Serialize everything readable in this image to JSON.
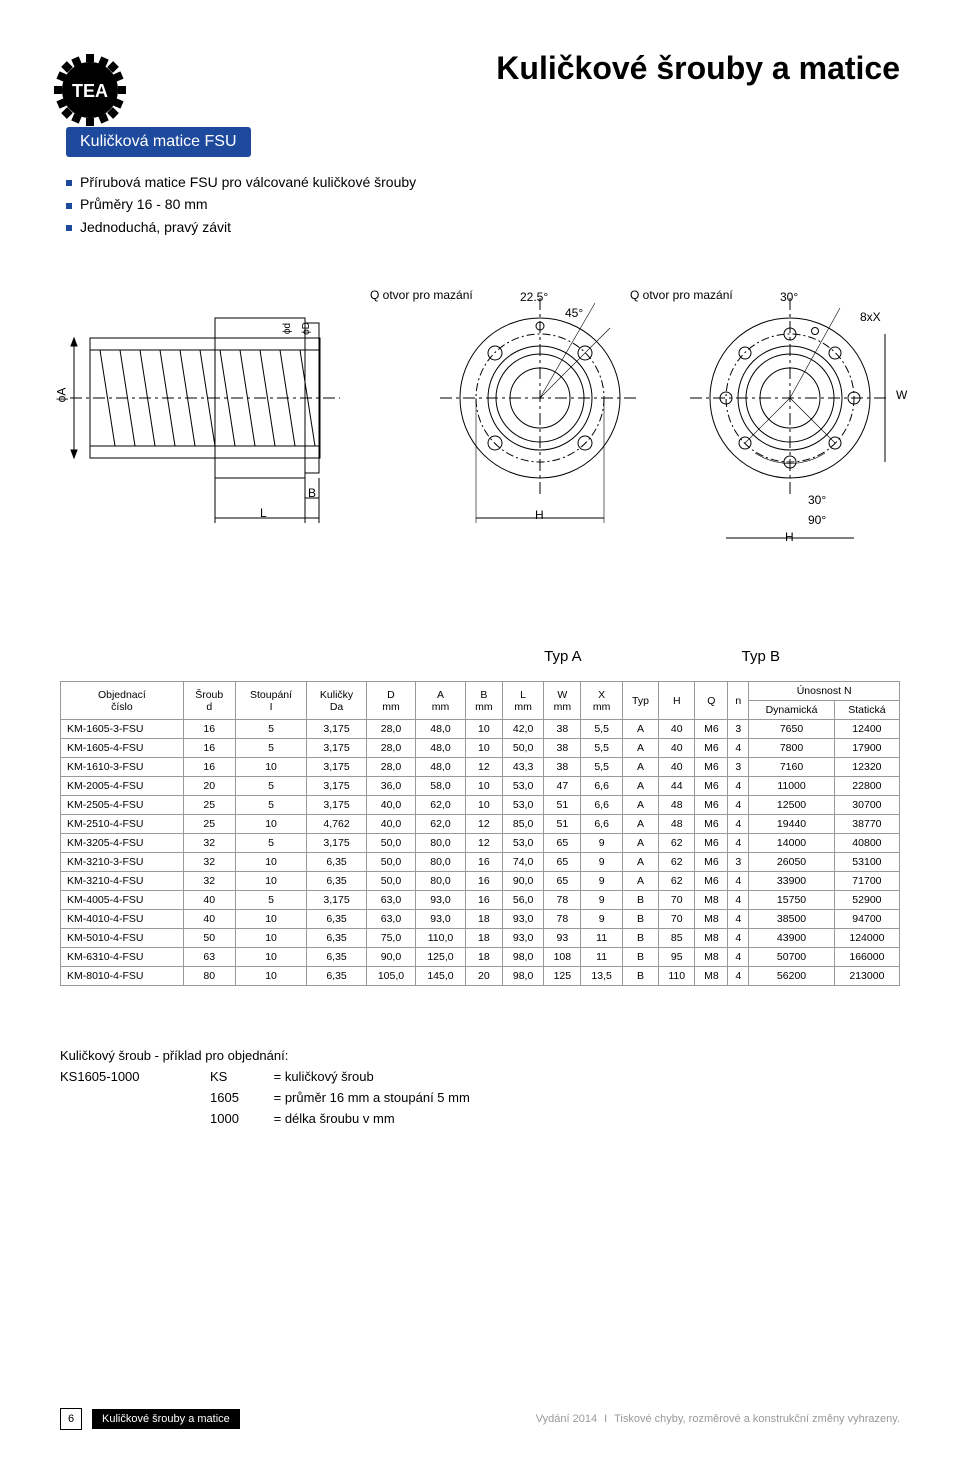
{
  "page": {
    "title": "Kuličkové šrouby a matice",
    "section_badge": "Kuličková matice FSU",
    "bullets": [
      "Přírubová matice FSU pro válcované kuličkové šrouby",
      "Průměry 16 - 80 mm",
      "Jednoduchá, pravý závit"
    ]
  },
  "diagram": {
    "q_label": "Q otvor pro mazání",
    "angle_225": "22.5°",
    "angle_45": "45°",
    "angle_30": "30°",
    "angle_90": "90°",
    "eight_x": "8xX",
    "phi_A": "ϕA",
    "phi_d": "ϕd",
    "phi_D": "ϕD",
    "B": "B",
    "L": "L",
    "H": "H",
    "W": "W",
    "typ_a": "Typ A",
    "typ_b": "Typ B"
  },
  "table": {
    "headers": {
      "obj": "Objednací",
      "cislo": "číslo",
      "sroub": "Šroub",
      "d": "d",
      "stoupani": "Stoupání",
      "I": "I",
      "kulicky": "Kuličky",
      "Da": "Da",
      "D": "D",
      "mm": "mm",
      "A": "A",
      "B": "B",
      "L": "L",
      "W": "W",
      "X": "X",
      "typ": "Typ",
      "H": "H",
      "Q": "Q",
      "n": "n",
      "unosnost": "Únosnost N",
      "dyn": "Dynamická",
      "stat": "Statická"
    },
    "rows": [
      [
        "KM-1605-3-FSU",
        "16",
        "5",
        "3,175",
        "28,0",
        "48,0",
        "10",
        "42,0",
        "38",
        "5,5",
        "A",
        "40",
        "M6",
        "3",
        "7650",
        "12400"
      ],
      [
        "KM-1605-4-FSU",
        "16",
        "5",
        "3,175",
        "28,0",
        "48,0",
        "10",
        "50,0",
        "38",
        "5,5",
        "A",
        "40",
        "M6",
        "4",
        "7800",
        "17900"
      ],
      [
        "KM-1610-3-FSU",
        "16",
        "10",
        "3,175",
        "28,0",
        "48,0",
        "12",
        "43,3",
        "38",
        "5,5",
        "A",
        "40",
        "M6",
        "3",
        "7160",
        "12320"
      ],
      [
        "KM-2005-4-FSU",
        "20",
        "5",
        "3,175",
        "36,0",
        "58,0",
        "10",
        "53,0",
        "47",
        "6,6",
        "A",
        "44",
        "M6",
        "4",
        "11000",
        "22800"
      ],
      [
        "KM-2505-4-FSU",
        "25",
        "5",
        "3,175",
        "40,0",
        "62,0",
        "10",
        "53,0",
        "51",
        "6,6",
        "A",
        "48",
        "M6",
        "4",
        "12500",
        "30700"
      ],
      [
        "KM-2510-4-FSU",
        "25",
        "10",
        "4,762",
        "40,0",
        "62,0",
        "12",
        "85,0",
        "51",
        "6,6",
        "A",
        "48",
        "M6",
        "4",
        "19440",
        "38770"
      ],
      [
        "KM-3205-4-FSU",
        "32",
        "5",
        "3,175",
        "50,0",
        "80,0",
        "12",
        "53,0",
        "65",
        "9",
        "A",
        "62",
        "M6",
        "4",
        "14000",
        "40800"
      ],
      [
        "KM-3210-3-FSU",
        "32",
        "10",
        "6,35",
        "50,0",
        "80,0",
        "16",
        "74,0",
        "65",
        "9",
        "A",
        "62",
        "M6",
        "3",
        "26050",
        "53100"
      ],
      [
        "KM-3210-4-FSU",
        "32",
        "10",
        "6,35",
        "50,0",
        "80,0",
        "16",
        "90,0",
        "65",
        "9",
        "A",
        "62",
        "M6",
        "4",
        "33900",
        "71700"
      ],
      [
        "KM-4005-4-FSU",
        "40",
        "5",
        "3,175",
        "63,0",
        "93,0",
        "16",
        "56,0",
        "78",
        "9",
        "B",
        "70",
        "M8",
        "4",
        "15750",
        "52900"
      ],
      [
        "KM-4010-4-FSU",
        "40",
        "10",
        "6,35",
        "63,0",
        "93,0",
        "18",
        "93,0",
        "78",
        "9",
        "B",
        "70",
        "M8",
        "4",
        "38500",
        "94700"
      ],
      [
        "KM-5010-4-FSU",
        "50",
        "10",
        "6,35",
        "75,0",
        "110,0",
        "18",
        "93,0",
        "93",
        "11",
        "B",
        "85",
        "M8",
        "4",
        "43900",
        "124000"
      ],
      [
        "KM-6310-4-FSU",
        "63",
        "10",
        "6,35",
        "90,0",
        "125,0",
        "18",
        "98,0",
        "108",
        "11",
        "B",
        "95",
        "M8",
        "4",
        "50700",
        "166000"
      ],
      [
        "KM-8010-4-FSU",
        "80",
        "10",
        "6,35",
        "105,0",
        "145,0",
        "20",
        "98,0",
        "125",
        "13,5",
        "B",
        "110",
        "M8",
        "4",
        "56200",
        "213000"
      ]
    ]
  },
  "example": {
    "title": "Kuličkový šroub - příklad pro objednání:",
    "key": "KS1605-1000",
    "lines": [
      {
        "code": "KS",
        "desc": "= kuličkový šroub"
      },
      {
        "code": "1605",
        "desc": "= průměr 16 mm a stoupání 5 mm"
      },
      {
        "code": "1000",
        "desc": "= délka šroubu v mm"
      }
    ]
  },
  "footer": {
    "page_num": "6",
    "tab_label": "Kuličkové šrouby a matice",
    "edition": "Vydání 2014",
    "disclaimer": "Tiskové chyby, rozměrové a konstrukční změny vyhrazeny."
  },
  "colors": {
    "badge_bg": "#1e4a9e",
    "border": "#999999",
    "footer_gray": "#999999"
  }
}
